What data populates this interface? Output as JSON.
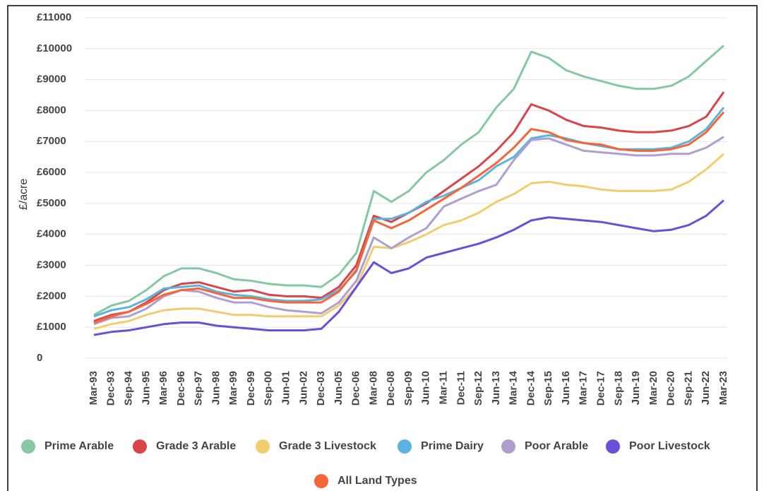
{
  "chart_data": {
    "type": "line",
    "y_label": "£/acre",
    "categories": [
      "Mar-93",
      "Dec-93",
      "Sep-94",
      "Jun-95",
      "Mar-96",
      "Dec-96",
      "Sep-97",
      "Jun-98",
      "Mar-99",
      "Dec-99",
      "Sep-00",
      "Jun-01",
      "Jun-02",
      "Dec-03",
      "Jun-05",
      "Dec-06",
      "Mar-08",
      "Dec-08",
      "Sep-09",
      "Jun-10",
      "Mar-11",
      "Dec-11",
      "Sep-12",
      "Jun-13",
      "Mar-14",
      "Dec-14",
      "Sep-15",
      "Jun-16",
      "Mar-17",
      "Dec-17",
      "Sep-18",
      "Jun-19",
      "Mar-20",
      "Dec-20",
      "Sep-21",
      "Jun-22",
      "Mar-23"
    ],
    "ylim": [
      0,
      11000
    ],
    "yticks": [
      0,
      {
        "value": 1000,
        "label": "£1000"
      },
      {
        "value": 2000,
        "label": "£2000"
      },
      {
        "value": 3000,
        "label": "£3000"
      },
      {
        "value": 4000,
        "label": "£4000"
      },
      {
        "value": 5000,
        "label": "£5000"
      },
      {
        "value": 6000,
        "label": "£6000"
      },
      {
        "value": 7000,
        "label": "£7000"
      },
      {
        "value": 8000,
        "label": "£8000"
      },
      {
        "value": 9000,
        "label": "£9000"
      },
      {
        "value": 10000,
        "label": "£10000"
      },
      {
        "value": 11000,
        "label": "£11000"
      }
    ],
    "grid": true,
    "legend": "bottom",
    "series": [
      {
        "name": "Prime Arable",
        "color": "#85c8a2",
        "values": [
          1400,
          1700,
          1850,
          2200,
          2650,
          2900,
          2900,
          2750,
          2550,
          2500,
          2400,
          2350,
          2350,
          2300,
          2700,
          3400,
          5400,
          5050,
          5400,
          6000,
          6400,
          6900,
          7300,
          8100,
          8700,
          9900,
          9700,
          9300,
          9100,
          8950,
          8800,
          8700,
          8700,
          8800,
          9100,
          9600,
          10100
        ]
      },
      {
        "name": "Grade 3 Arable",
        "color": "#d9444a",
        "values": [
          1200,
          1400,
          1500,
          1800,
          2200,
          2400,
          2450,
          2300,
          2150,
          2200,
          2050,
          2000,
          2000,
          1950,
          2300,
          3000,
          4600,
          4400,
          4700,
          5000,
          5400,
          5800,
          6200,
          6700,
          7300,
          8200,
          8000,
          7700,
          7500,
          7450,
          7350,
          7300,
          7300,
          7350,
          7500,
          7800,
          8600
        ]
      },
      {
        "name": "Grade 3 Livestock",
        "color": "#f0ce6e",
        "values": [
          950,
          1100,
          1200,
          1400,
          1550,
          1600,
          1600,
          1500,
          1400,
          1400,
          1350,
          1350,
          1350,
          1350,
          1700,
          2300,
          3600,
          3550,
          3750,
          4000,
          4300,
          4450,
          4700,
          5050,
          5300,
          5650,
          5700,
          5600,
          5550,
          5450,
          5400,
          5400,
          5400,
          5450,
          5700,
          6100,
          6600
        ]
      },
      {
        "name": "Prime Dairy",
        "color": "#5ab4e0",
        "values": [
          1350,
          1550,
          1650,
          1900,
          2250,
          2300,
          2350,
          2150,
          2050,
          2000,
          1900,
          1850,
          1850,
          1900,
          2200,
          2800,
          4500,
          4500,
          4700,
          5050,
          5250,
          5500,
          5750,
          6200,
          6500,
          7100,
          7200,
          7100,
          6950,
          6850,
          6750,
          6750,
          6750,
          6800,
          7000,
          7400,
          8100
        ]
      },
      {
        "name": "Poor Arable",
        "color": "#b19ed0",
        "values": [
          1100,
          1300,
          1350,
          1600,
          2000,
          2200,
          2150,
          1950,
          1800,
          1800,
          1650,
          1550,
          1500,
          1450,
          1800,
          2500,
          3900,
          3550,
          3900,
          4200,
          4900,
          5150,
          5400,
          5600,
          6400,
          7050,
          7100,
          6900,
          6700,
          6650,
          6600,
          6550,
          6550,
          6600,
          6600,
          6800,
          7150
        ]
      },
      {
        "name": "Poor Livestock",
        "color": "#6a4fd8",
        "values": [
          750,
          850,
          900,
          1000,
          1100,
          1150,
          1150,
          1050,
          1000,
          950,
          900,
          900,
          900,
          950,
          1500,
          2300,
          3100,
          2750,
          2900,
          3250,
          3400,
          3550,
          3700,
          3900,
          4150,
          4450,
          4550,
          4500,
          4450,
          4400,
          4300,
          4200,
          4100,
          4150,
          4300,
          4600,
          5100
        ]
      },
      {
        "name": "All Land Types",
        "color": "#f5653a",
        "values": [
          1150,
          1350,
          1500,
          1750,
          2050,
          2200,
          2250,
          2100,
          1950,
          1950,
          1850,
          1800,
          1800,
          1800,
          2150,
          2850,
          4450,
          4200,
          4450,
          4800,
          5150,
          5500,
          5900,
          6300,
          6800,
          7400,
          7300,
          7050,
          6950,
          6900,
          6750,
          6700,
          6700,
          6750,
          6900,
          7300,
          7950
        ]
      }
    ]
  }
}
